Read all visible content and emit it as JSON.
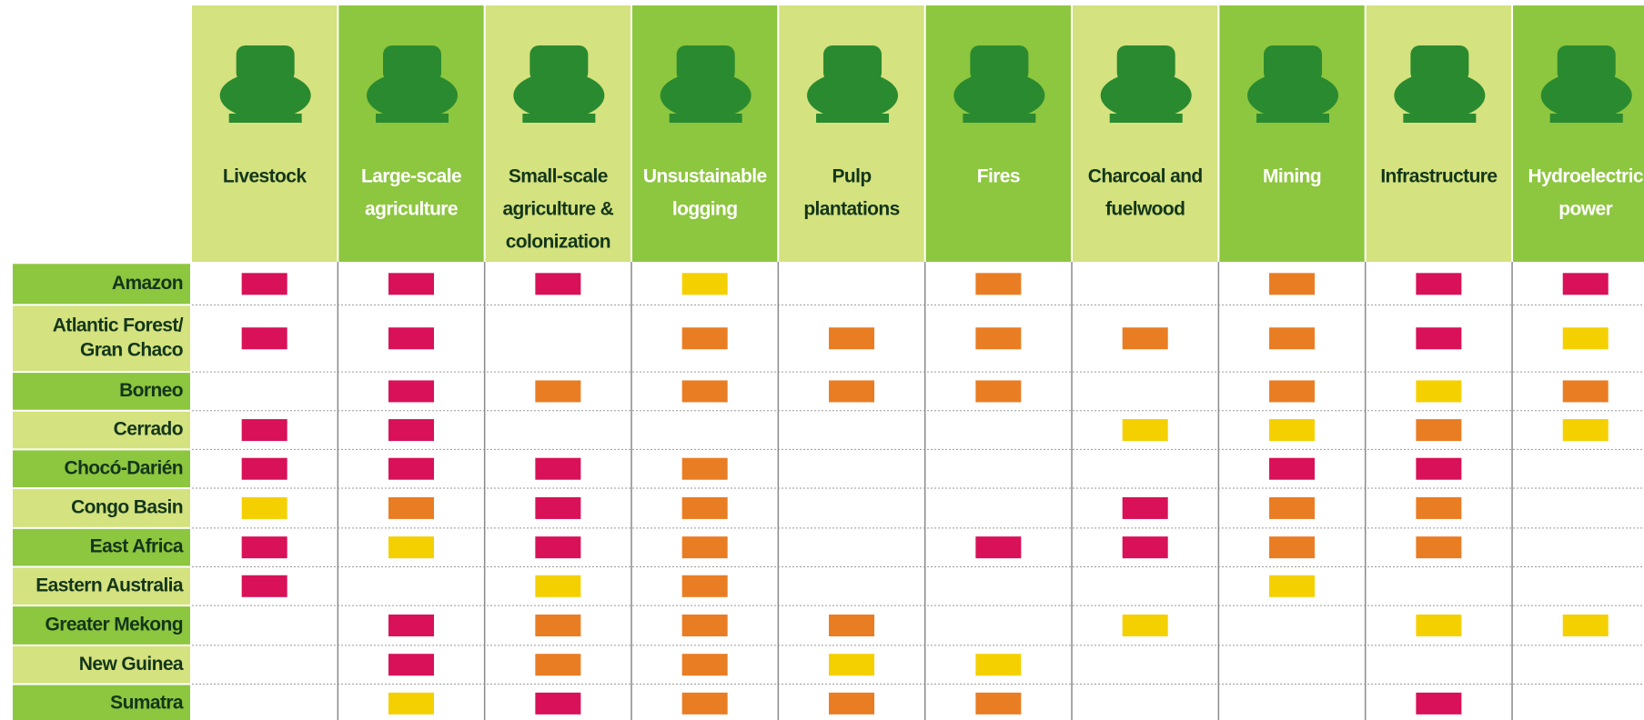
{
  "colors": {
    "high": "#d81159",
    "medium": "#e97d23",
    "low": "#f5d000"
  },
  "columns": [
    {
      "lines": [
        "Livestock"
      ]
    },
    {
      "lines": [
        "Large-scale",
        "agriculture"
      ]
    },
    {
      "lines": [
        "Small-scale",
        "agriculture &",
        "colonization"
      ]
    },
    {
      "lines": [
        "Unsustainable",
        "logging"
      ]
    },
    {
      "lines": [
        "Pulp",
        "plantations"
      ]
    },
    {
      "lines": [
        "Fires"
      ]
    },
    {
      "lines": [
        "Charcoal and",
        "fuelwood"
      ]
    },
    {
      "lines": [
        "Mining"
      ]
    },
    {
      "lines": [
        "Infrastructure"
      ]
    },
    {
      "lines": [
        "Hydroelectric",
        "power"
      ]
    }
  ],
  "rows": [
    {
      "lines": [
        "Amazon"
      ],
      "cells": [
        "high",
        "high",
        "high",
        "low",
        null,
        "medium",
        null,
        "medium",
        "high",
        "high"
      ]
    },
    {
      "lines": [
        "Atlantic Forest/",
        "Gran Chaco"
      ],
      "cells": [
        "high",
        "high",
        null,
        "medium",
        "medium",
        "medium",
        "medium",
        "medium",
        "high",
        "low"
      ]
    },
    {
      "lines": [
        "Borneo"
      ],
      "cells": [
        null,
        "high",
        "medium",
        "medium",
        "medium",
        "medium",
        null,
        "medium",
        "low",
        "medium"
      ]
    },
    {
      "lines": [
        "Cerrado"
      ],
      "cells": [
        "high",
        "high",
        null,
        null,
        null,
        null,
        "low",
        "low",
        "medium",
        "low"
      ]
    },
    {
      "lines": [
        "Chocó-Darién"
      ],
      "cells": [
        "high",
        "high",
        "high",
        "medium",
        null,
        null,
        null,
        "high",
        "high",
        null
      ]
    },
    {
      "lines": [
        "Congo Basin"
      ],
      "cells": [
        "low",
        "medium",
        "high",
        "medium",
        null,
        null,
        "high",
        "medium",
        "medium",
        null
      ]
    },
    {
      "lines": [
        "East Africa"
      ],
      "cells": [
        "high",
        "low",
        "high",
        "medium",
        null,
        "high",
        "high",
        "medium",
        "medium",
        null
      ]
    },
    {
      "lines": [
        "Eastern Australia"
      ],
      "cells": [
        "high",
        null,
        "low",
        "medium",
        null,
        null,
        null,
        "low",
        null,
        null
      ]
    },
    {
      "lines": [
        "Greater Mekong"
      ],
      "cells": [
        null,
        "high",
        "medium",
        "medium",
        "medium",
        null,
        "low",
        null,
        "low",
        "low"
      ]
    },
    {
      "lines": [
        "New Guinea"
      ],
      "cells": [
        null,
        "high",
        "medium",
        "medium",
        "low",
        "low",
        null,
        null,
        null,
        null
      ]
    },
    {
      "lines": [
        "Sumatra"
      ],
      "cells": [
        null,
        "low",
        "high",
        "medium",
        "medium",
        "medium",
        null,
        null,
        "high",
        null
      ]
    }
  ]
}
